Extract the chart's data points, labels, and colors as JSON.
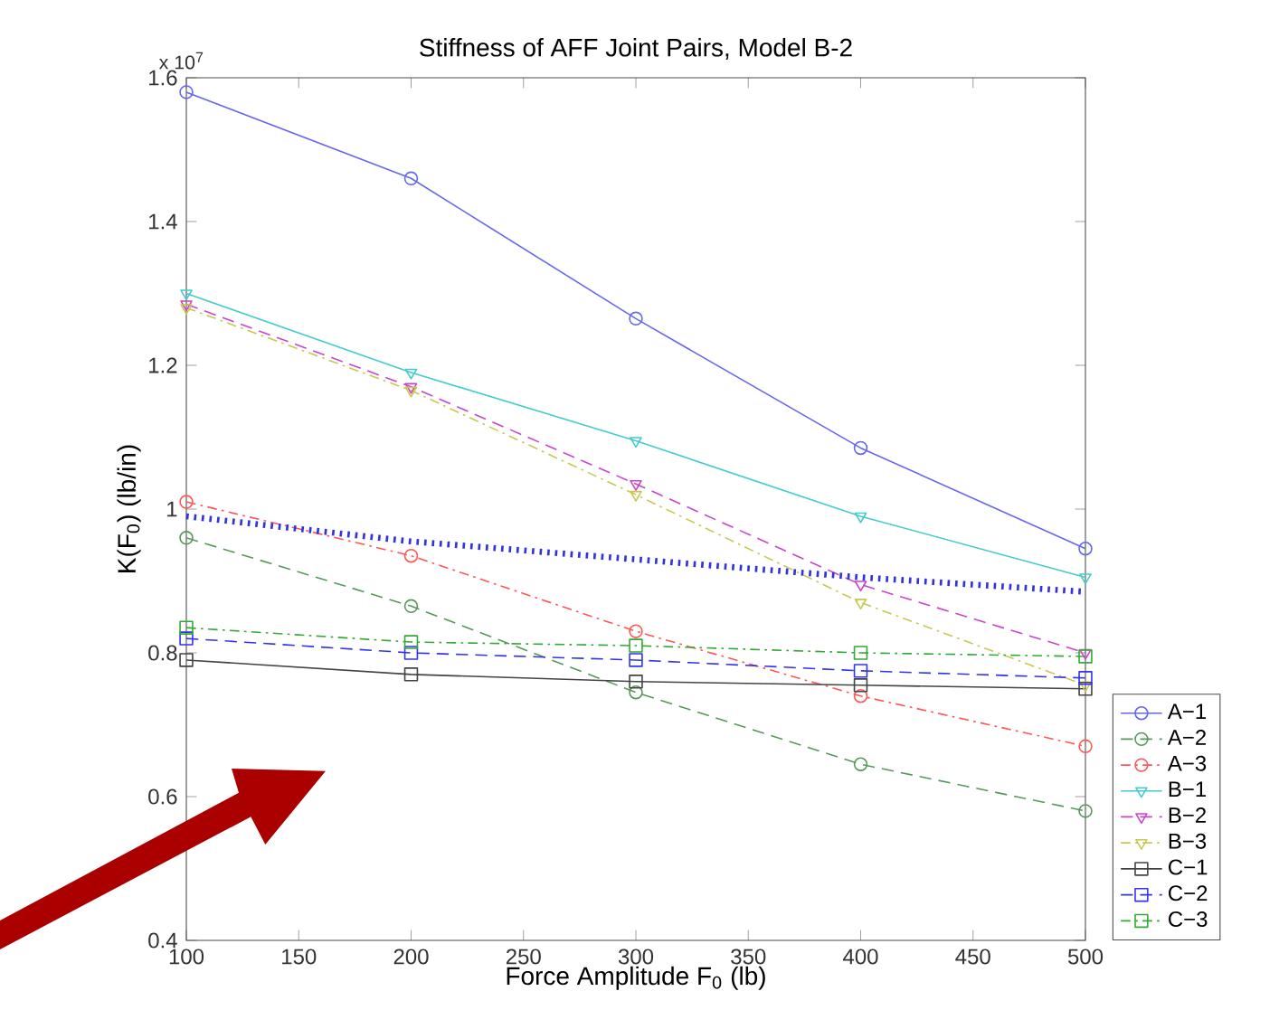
{
  "chart_data": {
    "type": "line",
    "title": "Stiffness of AFF Joint Pairs, Model B-2",
    "xlabel": "Force Amplitude F$_{0}$ (lb)",
    "ylabel": "K(F$_{0}$) (lb/in)",
    "annotations": [
      "x 10$^{7}$"
    ],
    "x": [
      100,
      200,
      300,
      400,
      500
    ],
    "xlim": [
      100,
      500
    ],
    "xticks": [
      100,
      150,
      200,
      250,
      300,
      350,
      400,
      450,
      500
    ],
    "ylim": [
      0.4,
      1.6
    ],
    "yticks": [
      0.4,
      0.6,
      0.8,
      1,
      1.2,
      1.4,
      1.6
    ],
    "legend": "bottom right",
    "series": [
      {
        "name": "A−1",
        "color": "#6666ee",
        "marker": "circle",
        "line_style": "solid",
        "values": [
          1.58,
          1.46,
          1.265,
          1.085,
          0.945
        ]
      },
      {
        "name": "A−2",
        "color": "#55995a",
        "marker": "circle",
        "line_style": "dashed",
        "values": [
          0.96,
          0.865,
          0.745,
          0.645,
          0.58
        ]
      },
      {
        "name": "A−3",
        "color": "#ff5555",
        "marker": "circle",
        "line_style": "dashdot",
        "values": [
          1.01,
          0.935,
          0.83,
          0.74,
          0.67
        ]
      },
      {
        "name": "B−1",
        "color": "#44cccc",
        "marker": "triangle",
        "line_style": "solid",
        "values": [
          1.3,
          1.19,
          1.095,
          0.99,
          0.905
        ]
      },
      {
        "name": "B−2",
        "color": "#cc44cc",
        "marker": "triangle",
        "line_style": "dashed",
        "values": [
          1.285,
          1.17,
          1.035,
          0.895,
          0.8
        ]
      },
      {
        "name": "B−3",
        "color": "#c8c850",
        "marker": "triangle",
        "line_style": "dashdot",
        "values": [
          1.28,
          1.165,
          1.02,
          0.87,
          0.755
        ]
      },
      {
        "name": "C−1",
        "color": "#444444",
        "marker": "square",
        "line_style": "solid",
        "values": [
          0.79,
          0.77,
          0.76,
          0.755,
          0.75
        ]
      },
      {
        "name": "C−2",
        "color": "#3333ee",
        "marker": "square",
        "line_style": "dashed",
        "values": [
          0.82,
          0.8,
          0.79,
          0.775,
          0.765
        ]
      },
      {
        "name": "C−3",
        "color": "#33aa33",
        "marker": "square",
        "line_style": "dashdot",
        "values": [
          0.835,
          0.815,
          0.81,
          0.8,
          0.795
        ]
      },
      {
        "color": "#3333dd",
        "marker": "none",
        "line_style": "dotted",
        "values": [
          0.99,
          0.955,
          0.93,
          0.905,
          0.885
        ]
      }
    ]
  }
}
